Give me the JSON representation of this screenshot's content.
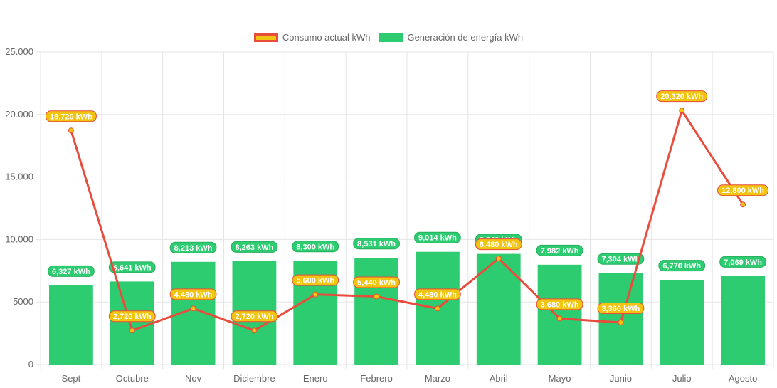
{
  "chart_data": {
    "type": "bar",
    "title": "",
    "xlabel": "",
    "ylabel": "",
    "ylim": [
      0,
      25000
    ],
    "yticks": [
      "0",
      "5000",
      "10.000",
      "15.000",
      "20.000",
      "25.000"
    ],
    "ytick_values": [
      0,
      5000,
      10000,
      15000,
      20000,
      25000
    ],
    "grid": true,
    "legend_position": "top-center",
    "categories": [
      "Sept",
      "Octubre",
      "Nov",
      "Diciembre",
      "Enero",
      "Febrero",
      "Marzo",
      "Abril",
      "Mayo",
      "Junio",
      "Julio",
      "Agosto"
    ],
    "series": [
      {
        "name": "Consumo actual kWh",
        "type": "line",
        "color": "#e74c3c",
        "fill": "#f1c40f",
        "values": [
          18720,
          2720,
          4480,
          2720,
          5600,
          5440,
          4480,
          8480,
          3680,
          3360,
          20320,
          12800
        ],
        "labels": [
          "18,720 kWh",
          "2,720 kWh",
          "4,480 kWh",
          "2,720 kWh",
          "5,600 kWh",
          "5,440 kWh",
          "4,480 kWh",
          "8,480 kWh",
          "3,680 kWh",
          "3,360 kWh",
          "20,320 kWh",
          "12,800 kWh"
        ]
      },
      {
        "name": "Generación de energía kWh",
        "type": "bar",
        "color": "#2ecc71",
        "values": [
          6327,
          6641,
          8213,
          8263,
          8300,
          8531,
          9014,
          8849,
          7982,
          7304,
          6770,
          7069
        ],
        "labels": [
          "6,327 kWh",
          "6,641 kWh",
          "8,213 kWh",
          "8,263 kWh",
          "8,300 kWh",
          "8,531 kWh",
          "9,014 kWh",
          "8,849 kWh",
          "7,982 kWh",
          "7,304 kWh",
          "6,770 kWh",
          "7,069 kWh"
        ]
      }
    ]
  }
}
